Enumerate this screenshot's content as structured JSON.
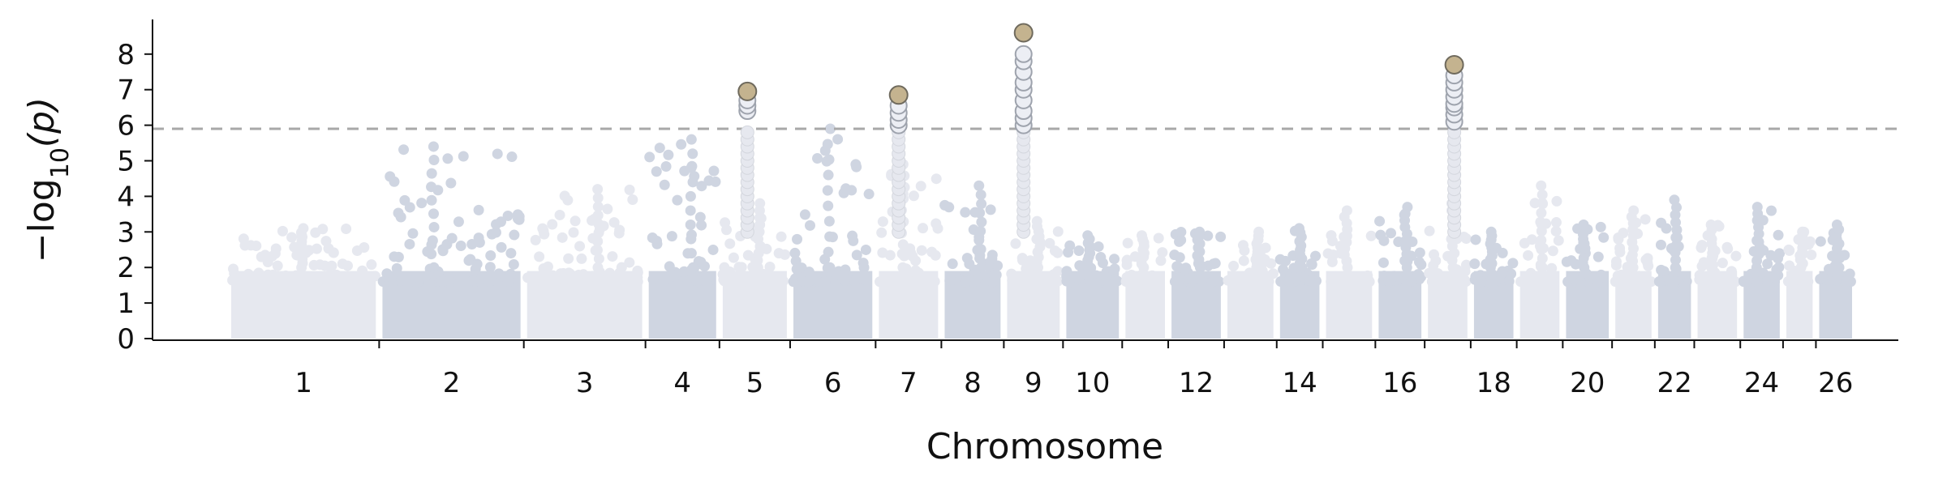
{
  "chart_data": {
    "type": "scatter",
    "subtype": "manhattan",
    "title": "",
    "xlabel": "Chromosome",
    "ylabel_parts": {
      "prefix": "−log",
      "subscript": "10",
      "suffix": "(p)"
    },
    "ylim": [
      0,
      9
    ],
    "y_ticks": [
      0,
      1,
      2,
      3,
      4,
      5,
      6,
      7,
      8
    ],
    "significance_threshold": 5.9,
    "x_tick_labels": [
      "1",
      "2",
      "3",
      "4",
      "5",
      "6",
      "7",
      "8",
      "9",
      "10",
      "12",
      "14",
      "16",
      "18",
      "20",
      "22",
      "24",
      "26"
    ],
    "grid": false,
    "legend": "none",
    "colors": {
      "light": "#e6e8ef",
      "dark": "#cfd5e1",
      "significant_fill": "#eceef4",
      "significant_edge": "#9ea3ad",
      "lead_snp": "#c4b38f",
      "lead_edge": "#6f6a5d",
      "threshold": "#a8a8a8"
    },
    "chromosomes": [
      {
        "label": "1",
        "start": 0.0,
        "end": 4.4,
        "max": 3.1,
        "shade": "light"
      },
      {
        "label": "2",
        "start": 4.6,
        "end": 8.8,
        "max": 5.4,
        "shade": "dark"
      },
      {
        "label": "3",
        "start": 9.0,
        "end": 12.5,
        "max": 4.2,
        "shade": "light"
      },
      {
        "label": "4",
        "start": 12.7,
        "end": 14.75,
        "max": 5.6,
        "shade": "dark"
      },
      {
        "label": "5",
        "start": 14.95,
        "end": 16.9,
        "max": 3.8,
        "shade": "light"
      },
      {
        "label": "6",
        "start": 17.1,
        "end": 19.5,
        "max": 5.9,
        "shade": "dark"
      },
      {
        "label": "7",
        "start": 19.7,
        "end": 21.5,
        "max": 4.9,
        "shade": "light"
      },
      {
        "label": "8",
        "start": 21.7,
        "end": 23.4,
        "max": 4.3,
        "shade": "dark"
      },
      {
        "label": "9",
        "start": 23.6,
        "end": 25.2,
        "max": 3.3,
        "shade": "light"
      },
      {
        "label": "",
        "start": 25.4,
        "end": 27.0,
        "max": 2.9,
        "shade": "dark"
      },
      {
        "label": "",
        "start": 27.2,
        "end": 28.4,
        "max": 2.9,
        "shade": "light"
      },
      {
        "label": "",
        "start": 28.6,
        "end": 30.1,
        "max": 3.0,
        "shade": "dark"
      },
      {
        "label": "",
        "start": 30.3,
        "end": 31.7,
        "max": 3.0,
        "shade": "light"
      },
      {
        "label": "",
        "start": 31.9,
        "end": 33.1,
        "max": 3.1,
        "shade": "dark"
      },
      {
        "label": "",
        "start": 33.3,
        "end": 34.7,
        "max": 3.6,
        "shade": "light"
      },
      {
        "label": "",
        "start": 34.9,
        "end": 36.2,
        "max": 3.7,
        "shade": "dark"
      },
      {
        "label": "",
        "start": 36.4,
        "end": 37.6,
        "max": 3.8,
        "shade": "light"
      },
      {
        "label": "",
        "start": 37.8,
        "end": 39.0,
        "max": 3.0,
        "shade": "dark"
      },
      {
        "label": "",
        "start": 39.2,
        "end": 40.4,
        "max": 4.3,
        "shade": "light"
      },
      {
        "label": "",
        "start": 40.6,
        "end": 41.9,
        "max": 3.2,
        "shade": "dark"
      },
      {
        "label": "",
        "start": 42.1,
        "end": 43.2,
        "max": 3.6,
        "shade": "light"
      },
      {
        "label": "",
        "start": 43.4,
        "end": 44.4,
        "max": 3.9,
        "shade": "dark"
      },
      {
        "label": "",
        "start": 44.6,
        "end": 45.8,
        "max": 3.2,
        "shade": "light"
      },
      {
        "label": "",
        "start": 46.0,
        "end": 47.1,
        "max": 3.7,
        "shade": "dark"
      },
      {
        "label": "",
        "start": 47.3,
        "end": 48.1,
        "max": 3.0,
        "shade": "light"
      },
      {
        "label": "",
        "start": 48.3,
        "end": 49.3,
        "max": 3.2,
        "shade": "dark"
      }
    ],
    "significant_loci": [
      {
        "x": 15.7,
        "lead": 6.95,
        "others": [
          6.4,
          6.55,
          6.7
        ]
      },
      {
        "x": 20.3,
        "lead": 6.85,
        "others": [
          6.0,
          6.15,
          6.35,
          6.55
        ]
      },
      {
        "x": 24.1,
        "lead": 8.6,
        "others": [
          6.0,
          6.2,
          6.4,
          6.7,
          7.0,
          7.2,
          7.5,
          7.8,
          8.0
        ]
      },
      {
        "x": 37.2,
        "lead": 7.7,
        "others": [
          6.1,
          6.3,
          6.5,
          6.6,
          6.8,
          7.0,
          7.2,
          7.4
        ]
      }
    ]
  }
}
